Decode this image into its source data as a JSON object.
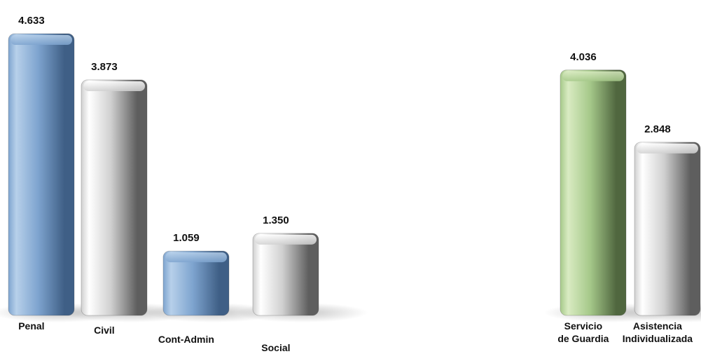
{
  "chart_data": [
    {
      "type": "bar",
      "categories": [
        "Penal",
        "Civil",
        "Cont-Admin",
        "Social"
      ],
      "values": [
        4633,
        3873,
        1059,
        1350
      ],
      "value_labels": [
        "4.633",
        "3.873",
        "1.059",
        "1.350"
      ],
      "bar_colors": [
        "blue",
        "gray",
        "blue",
        "gray"
      ],
      "ylim": [
        0,
        4633
      ]
    },
    {
      "type": "bar",
      "categories": [
        "Servicio de Guardia",
        "Asistencia Individualizada"
      ],
      "category_lines": [
        [
          "Servicio",
          "de Guardia"
        ],
        [
          "Asistencia",
          "Individualizada"
        ]
      ],
      "values": [
        4036,
        2848
      ],
      "value_labels": [
        "4.036",
        "2.848"
      ],
      "bar_colors": [
        "green",
        "gray"
      ],
      "ylim": [
        0,
        4633
      ]
    }
  ],
  "colors": {
    "blue": {
      "light": "#b7d0ea",
      "mid": "#7ea4cf",
      "dark": "#3f5f86"
    },
    "gray": {
      "light": "#ffffff",
      "mid": "#d0d0d0",
      "dark": "#5e5e5e"
    },
    "green": {
      "light": "#d9ebc2",
      "mid": "#a6c98a",
      "dark": "#50673f"
    }
  }
}
